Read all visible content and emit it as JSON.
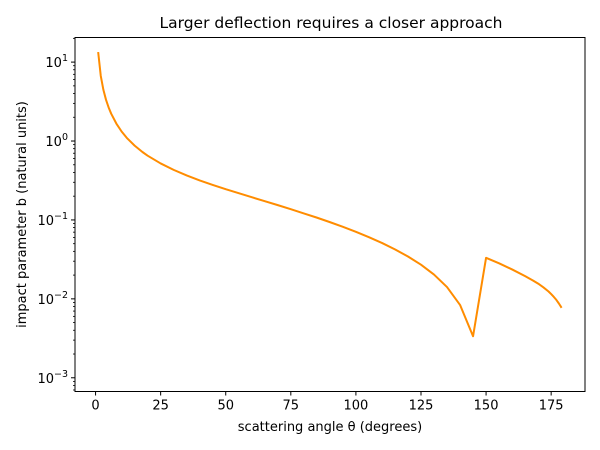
{
  "chart_data": {
    "type": "line",
    "title": "Larger deflection requires a closer approach",
    "xlabel": "scattering angle θ (degrees)",
    "ylabel": "impact parameter b (natural units)",
    "xscale": "linear",
    "yscale": "log",
    "xlim": [
      -7.9,
      188
    ],
    "ylim": [
      0.00067,
      20.5
    ],
    "grid": false,
    "legend": "none",
    "x_ticks": [
      0,
      25,
      50,
      75,
      100,
      125,
      150,
      175
    ],
    "y_ticks": [
      {
        "value": 0.001,
        "mantissa": "10",
        "exp": "−3"
      },
      {
        "value": 0.01,
        "mantissa": "10",
        "exp": "−2"
      },
      {
        "value": 0.1,
        "mantissa": "10",
        "exp": "−1"
      },
      {
        "value": 1,
        "mantissa": "10",
        "exp": "0"
      },
      {
        "value": 10,
        "mantissa": "10",
        "exp": "1"
      }
    ],
    "series": [
      {
        "color": "#ff8c00",
        "x": [
          1,
          2,
          3,
          4,
          5,
          6,
          8,
          10,
          12,
          15,
          18,
          20,
          25,
          30,
          35,
          40,
          45,
          50,
          55,
          60,
          65,
          70,
          75,
          80,
          85,
          90,
          95,
          100,
          105,
          110,
          115,
          120,
          125,
          130,
          135,
          140,
          145,
          150,
          155,
          160,
          165,
          168,
          170,
          172,
          174,
          175,
          176,
          177,
          178,
          178.5,
          179
        ],
        "y": [
          13.4,
          6.69,
          4.46,
          3.34,
          2.67,
          2.22,
          1.66,
          1.32,
          1.095,
          0.874,
          0.726,
          0.652,
          0.52,
          0.431,
          0.366,
          0.317,
          0.278,
          0.245,
          0.218,
          0.194,
          0.173,
          0.154,
          0.137,
          0.121,
          0.107,
          0.0938,
          0.0818,
          0.0707,
          0.0605,
          0.0511,
          0.0424,
          0.0344,
          0.0271,
          0.0203,
          0.0141,
          0.00838,
          0.00336,
          0.0331,
          0.0282,
          0.0236,
          0.0194,
          0.0171,
          0.0156,
          0.014,
          0.0124,
          0.0115,
          0.0106,
          0.0097,
          0.0087,
          0.0082,
          0.0077
        ]
      }
    ]
  }
}
